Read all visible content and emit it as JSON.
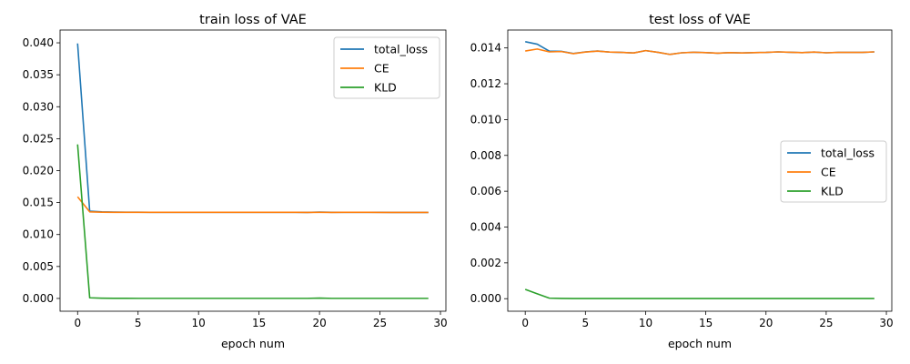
{
  "chart_data": [
    {
      "type": "line",
      "title": "train loss of VAE",
      "xlabel": "epoch num",
      "ylabel": "",
      "xlim": [
        -1.45,
        30.45
      ],
      "ylim": [
        -0.002,
        0.042
      ],
      "xticks": [
        0,
        5,
        10,
        15,
        20,
        25,
        30
      ],
      "xtick_labels": [
        "0",
        "5",
        "10",
        "15",
        "20",
        "25",
        "30"
      ],
      "yticks": [
        0.0,
        0.005,
        0.01,
        0.015,
        0.02,
        0.025,
        0.03,
        0.035,
        0.04
      ],
      "ytick_labels": [
        "0.000",
        "0.005",
        "0.010",
        "0.015",
        "0.020",
        "0.025",
        "0.030",
        "0.035",
        "0.040"
      ],
      "legend_position": "top-right",
      "x": [
        0,
        1,
        2,
        3,
        4,
        5,
        6,
        7,
        8,
        9,
        10,
        11,
        12,
        13,
        14,
        15,
        16,
        17,
        18,
        19,
        20,
        21,
        22,
        23,
        24,
        25,
        26,
        27,
        28,
        29
      ],
      "series": [
        {
          "name": "total_loss",
          "color": "#1f77b4",
          "values": [
            0.0399,
            0.01365,
            0.01355,
            0.01352,
            0.0135,
            0.01349,
            0.01348,
            0.01348,
            0.01348,
            0.01347,
            0.01347,
            0.01347,
            0.01347,
            0.01347,
            0.01347,
            0.01347,
            0.01347,
            0.01347,
            0.01347,
            0.01346,
            0.01352,
            0.01347,
            0.01347,
            0.01347,
            0.01347,
            0.01347,
            0.01346,
            0.01346,
            0.01346,
            0.01346
          ]
        },
        {
          "name": "CE",
          "color": "#ff7f0e",
          "values": [
            0.0159,
            0.01355,
            0.0135,
            0.01348,
            0.01348,
            0.01347,
            0.01347,
            0.01347,
            0.01347,
            0.01347,
            0.01347,
            0.01347,
            0.01347,
            0.01347,
            0.01347,
            0.01347,
            0.01347,
            0.01347,
            0.01347,
            0.01346,
            0.01348,
            0.01346,
            0.01347,
            0.01347,
            0.01347,
            0.01346,
            0.01346,
            0.01346,
            0.01346,
            0.01346
          ]
        },
        {
          "name": "KLD",
          "color": "#2ca02c",
          "values": [
            0.0241,
            0.0001,
            4e-05,
            2e-05,
            2e-05,
            1e-05,
            1e-05,
            1e-05,
            1e-05,
            1e-05,
            1e-05,
            1e-05,
            1e-05,
            1e-05,
            1e-05,
            1e-05,
            1e-05,
            1e-05,
            1e-05,
            1e-05,
            5e-05,
            1e-05,
            1e-05,
            1e-05,
            1e-05,
            1e-05,
            1e-05,
            1e-05,
            1e-05,
            1e-05
          ]
        }
      ]
    },
    {
      "type": "line",
      "title": "test loss of VAE",
      "xlabel": "epoch num",
      "ylabel": "",
      "xlim": [
        -1.45,
        30.45
      ],
      "ylim": [
        -0.0007,
        0.015
      ],
      "xticks": [
        0,
        5,
        10,
        15,
        20,
        25,
        30
      ],
      "xtick_labels": [
        "0",
        "5",
        "10",
        "15",
        "20",
        "25",
        "30"
      ],
      "yticks": [
        0.0,
        0.002,
        0.004,
        0.006,
        0.008,
        0.01,
        0.012,
        0.014
      ],
      "ytick_labels": [
        "0.000",
        "0.002",
        "0.004",
        "0.006",
        "0.008",
        "0.010",
        "0.012",
        "0.014"
      ],
      "legend_position": "center-right",
      "x": [
        0,
        1,
        2,
        3,
        4,
        5,
        6,
        7,
        8,
        9,
        10,
        11,
        12,
        13,
        14,
        15,
        16,
        17,
        18,
        19,
        20,
        21,
        22,
        23,
        24,
        25,
        26,
        27,
        28,
        29
      ],
      "series": [
        {
          "name": "total_loss",
          "color": "#1f77b4",
          "values": [
            0.01435,
            0.01421,
            0.01382,
            0.01381,
            0.01369,
            0.01378,
            0.01383,
            0.01377,
            0.01375,
            0.01372,
            0.01385,
            0.01376,
            0.01364,
            0.01373,
            0.01376,
            0.01374,
            0.01371,
            0.01374,
            0.01372,
            0.01374,
            0.01375,
            0.01378,
            0.01376,
            0.01374,
            0.01377,
            0.01373,
            0.01375,
            0.01375,
            0.01375,
            0.01378
          ]
        },
        {
          "name": "CE",
          "color": "#ff7f0e",
          "values": [
            0.01383,
            0.01394,
            0.01378,
            0.0138,
            0.01368,
            0.01377,
            0.01382,
            0.01377,
            0.01375,
            0.01372,
            0.01385,
            0.01376,
            0.01364,
            0.01373,
            0.01376,
            0.01374,
            0.01371,
            0.01374,
            0.01372,
            0.01374,
            0.01375,
            0.01378,
            0.01376,
            0.01374,
            0.01377,
            0.01373,
            0.01375,
            0.01375,
            0.01375,
            0.01378
          ]
        },
        {
          "name": "KLD",
          "color": "#2ca02c",
          "values": [
            0.00052,
            0.00027,
            3e-05,
            1.5e-05,
            1e-05,
            1e-05,
            1e-05,
            1e-05,
            1e-05,
            1e-05,
            1e-05,
            1e-05,
            1e-05,
            1e-05,
            1e-05,
            1e-05,
            1e-05,
            1e-05,
            1e-05,
            1e-05,
            1e-05,
            1e-05,
            1e-05,
            1e-05,
            1e-05,
            1e-05,
            1e-05,
            1e-05,
            1e-05,
            1e-05
          ]
        }
      ]
    }
  ]
}
